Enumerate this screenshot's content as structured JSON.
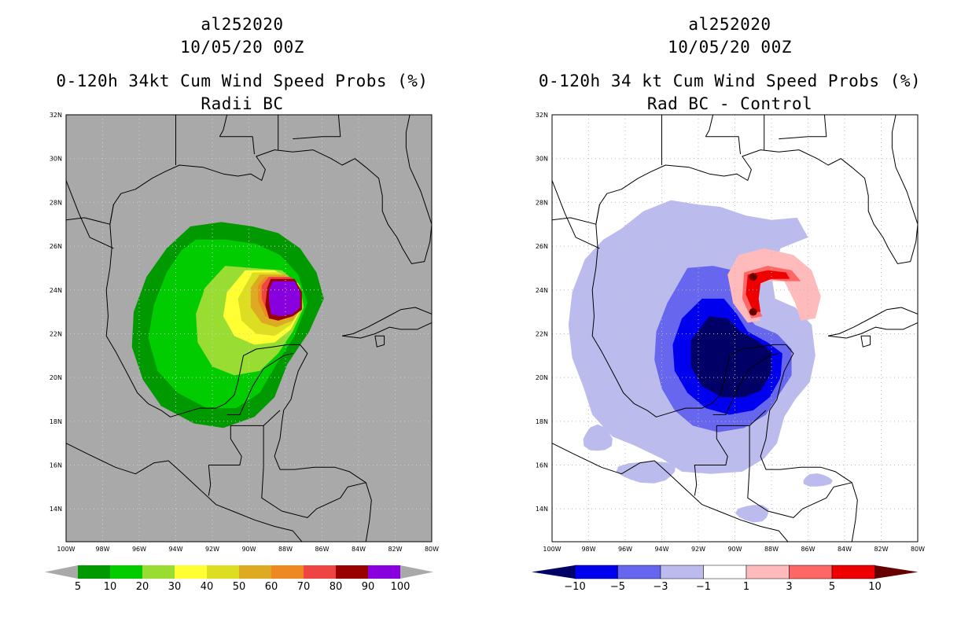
{
  "chart_data": [
    {
      "type": "filled-contour-map",
      "title_lines": [
        "al252020",
        "10/05/20 00Z",
        "0-120h 34kt Cum Wind Speed Probs (%)",
        "Radii BC"
      ],
      "x_ticks": [
        "100W",
        "98W",
        "96W",
        "94W",
        "92W",
        "90W",
        "88W",
        "86W",
        "84W",
        "82W",
        "80W"
      ],
      "y_ticks": [
        "32N",
        "30N",
        "28N",
        "26N",
        "24N",
        "22N",
        "20N",
        "18N",
        "16N",
        "14N"
      ],
      "xlim": [
        -100,
        -80
      ],
      "ylim": [
        12.5,
        32
      ],
      "background_color": "#a9a9a9",
      "levels": [
        5,
        10,
        20,
        30,
        40,
        50,
        60,
        70,
        80,
        90,
        100
      ],
      "level_labels": [
        "5",
        "10",
        "20",
        "30",
        "40",
        "50",
        "60",
        "70",
        "80",
        "90",
        "100"
      ],
      "colors": [
        "#009900",
        "#00cc00",
        "#99dd33",
        "#ffff33",
        "#dddd22",
        "#ddaa22",
        "#ee8822",
        "#ee4444",
        "#990000",
        "#8800dd"
      ],
      "max_center": {
        "lon": -88,
        "lat": 23.7,
        "value": 100
      }
    },
    {
      "type": "filled-contour-map",
      "title_lines": [
        "al252020",
        "10/05/20 00Z",
        "0-120h 34 kt Cum Wind Speed Probs (%)",
        "Rad BC - Control"
      ],
      "x_ticks": [
        "100W",
        "98W",
        "96W",
        "94W",
        "92W",
        "90W",
        "88W",
        "86W",
        "84W",
        "82W",
        "80W"
      ],
      "y_ticks": [
        "32N",
        "30N",
        "28N",
        "26N",
        "24N",
        "22N",
        "20N",
        "18N",
        "16N",
        "14N"
      ],
      "xlim": [
        -100,
        -80
      ],
      "ylim": [
        12.5,
        32
      ],
      "background_color": "#ffffff",
      "levels": [
        -10,
        -5,
        -3,
        -1,
        1,
        3,
        5,
        10
      ],
      "level_labels": [
        "-10",
        "-5",
        "-3",
        "-1",
        "1",
        "3",
        "5",
        "10"
      ],
      "colors": [
        "#000066",
        "#0000ee",
        "#6666ee",
        "#bbbbee",
        "#ffffff",
        "#ffbbbb",
        "#ff6666",
        "#ee0000",
        "#660000"
      ],
      "min_center": {
        "lon": -90.5,
        "lat": 20.5,
        "value": -10
      },
      "max_center": {
        "lon": -88.5,
        "lat": 24.2,
        "value": 5
      }
    }
  ]
}
